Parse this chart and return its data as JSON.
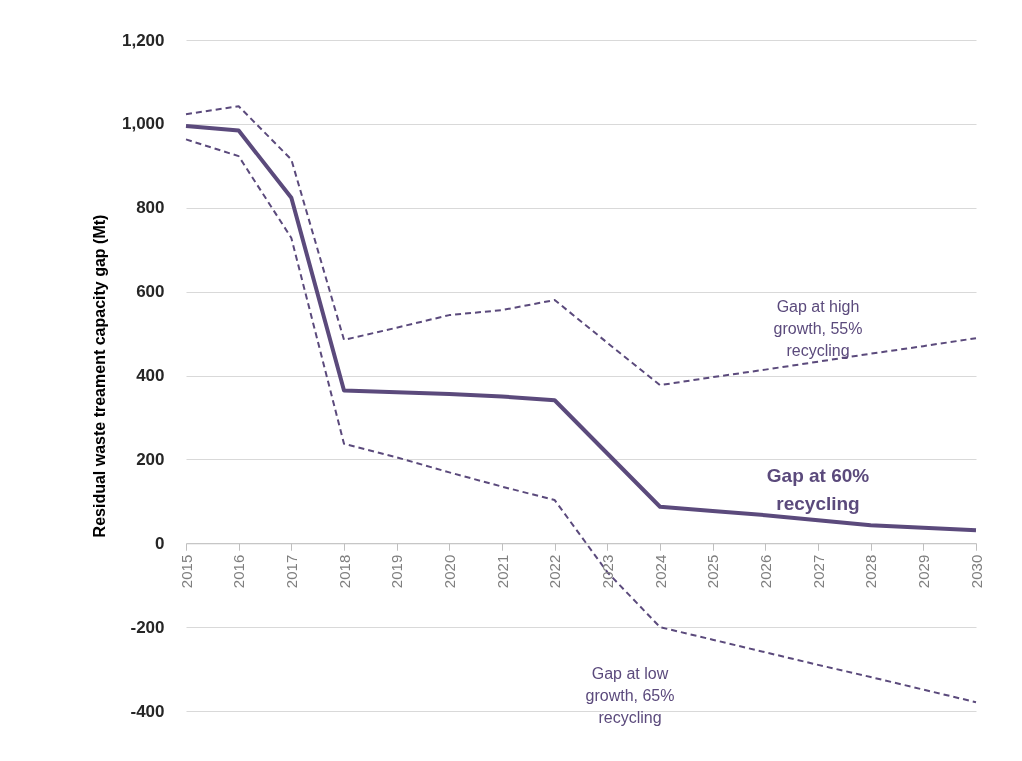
{
  "chart_data": {
    "type": "line",
    "ylabel": "Residual waste treament capacity gap (Mt)",
    "categories": [
      "2015",
      "2016",
      "2017",
      "2018",
      "2019",
      "2020",
      "2021",
      "2022",
      "2023",
      "2024",
      "2025",
      "2026",
      "2027",
      "2028",
      "2029",
      "2030"
    ],
    "series": [
      {
        "name": "Gap at 60% recycling",
        "color": "#5b4a7c",
        "line_style": "solid",
        "values": [
          995,
          984,
          824,
          364,
          360,
          356,
          350,
          341,
          214,
          87,
          77,
          67,
          55,
          43,
          37,
          31
        ]
      },
      {
        "name": "Gap at high growth, 55% recycling",
        "color": "#5b4a7c",
        "line_style": "dashed",
        "values": [
          1023,
          1042,
          915,
          485,
          514,
          544,
          556,
          580,
          478,
          377,
          396,
          414,
          433,
          452,
          470,
          489
        ]
      },
      {
        "name": "Gap at low growth, 65% recycling",
        "color": "#5b4a7c",
        "line_style": "dashed",
        "values": [
          963,
          923,
          728,
          237,
          205,
          169,
          135,
          103,
          -69,
          -200,
          -230,
          -260,
          -290,
          -319,
          -349,
          -379
        ]
      }
    ],
    "ylim": [
      -400,
      1200
    ],
    "yticks": [
      -400,
      -200,
      0,
      200,
      400,
      600,
      800,
      {
        "value": 1000,
        "label": "1,000"
      },
      {
        "value": 1200,
        "label": "1,200"
      }
    ],
    "grid": "y",
    "marker": "none"
  }
}
